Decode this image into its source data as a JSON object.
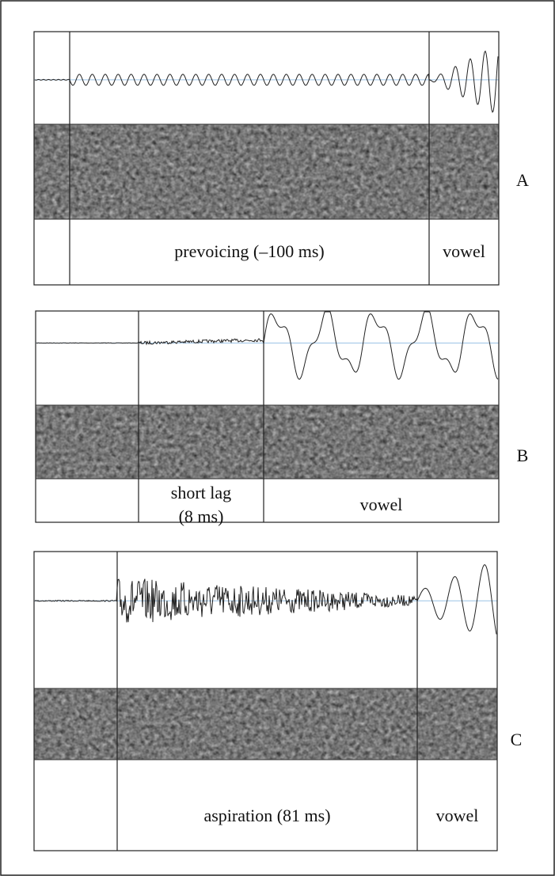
{
  "panels": [
    {
      "letter": "A",
      "segments": [
        [
          "prevoicing (–100 ms)"
        ],
        [
          "vowel"
        ]
      ]
    },
    {
      "letter": "B",
      "segments": [
        [
          "short lag",
          "(8 ms)"
        ],
        [
          "vowel"
        ]
      ]
    },
    {
      "letter": "C",
      "segments": [
        [
          "aspiration (81 ms)"
        ],
        [
          "vowel"
        ]
      ]
    }
  ]
}
